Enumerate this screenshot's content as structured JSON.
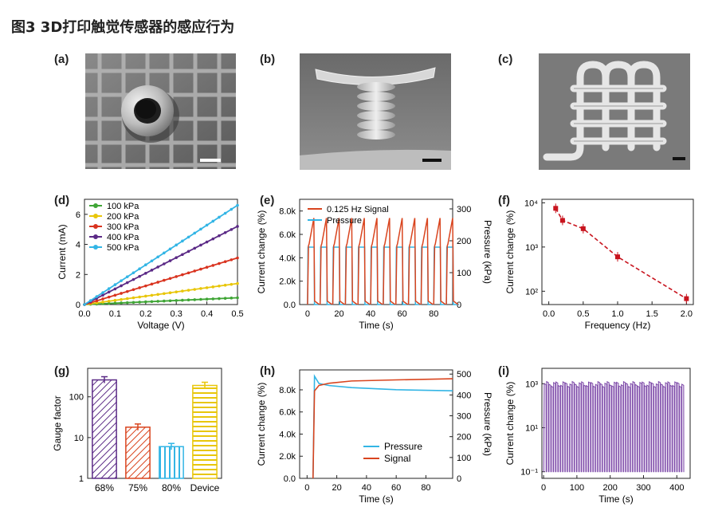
{
  "figure_title": "图3  3D打印触觉传感器的感应行为",
  "panel_labels": [
    "(a)",
    "(b)",
    "(c)",
    "(d)",
    "(e)",
    "(f)",
    "(g)",
    "(h)",
    "(i)"
  ],
  "images": {
    "a": "SEM micrograph of a printed hollow cylindrical tube on a lattice, viewed from above",
    "b": "SEM micrograph of a printed coil-spring pillar with a flat top plate",
    "c": "SEM micrograph of a printed woven lattice structure"
  },
  "chart_data": [
    {
      "id": "d",
      "type": "line",
      "xlabel": "Voltage (V)",
      "ylabel": "Current (mA)",
      "xlim": [
        0,
        0.5
      ],
      "ylim": [
        0,
        7
      ],
      "xticks": [
        "0.0",
        "0.1",
        "0.2",
        "0.3",
        "0.4",
        "0.5"
      ],
      "yticks": [
        "0",
        "2",
        "4",
        "6"
      ],
      "legend": "top-left",
      "x": [
        0,
        0.5
      ],
      "series": [
        {
          "name": "100 kPa",
          "color": "#3fa535",
          "values": [
            0,
            0.45
          ]
        },
        {
          "name": "200 kPa",
          "color": "#e8c60a",
          "values": [
            0,
            1.4
          ]
        },
        {
          "name": "300 kPa",
          "color": "#d9331f",
          "values": [
            0,
            3.1
          ]
        },
        {
          "name": "400 kPa",
          "color": "#5b2a86",
          "values": [
            0,
            5.2
          ]
        },
        {
          "name": "500 kPa",
          "color": "#33b5e5",
          "values": [
            0,
            6.6
          ]
        }
      ]
    },
    {
      "id": "e",
      "type": "line",
      "xlabel": "Time (s)",
      "ylabel": "Current change (%)",
      "y2label": "Pressure (kPa)",
      "xlim": [
        -5,
        92
      ],
      "ylim": [
        0,
        9000
      ],
      "y2lim": [
        0,
        330
      ],
      "xticks": [
        "0",
        "20",
        "40",
        "60",
        "80"
      ],
      "yticks": [
        "0.0",
        "2.0k",
        "4.0k",
        "6.0k",
        "8.0k"
      ],
      "y2ticks": [
        "0",
        "100",
        "200",
        "300"
      ],
      "legend": "top",
      "pulse_period_s": 8,
      "pulse_count": 12,
      "series": [
        {
          "name": "0.125 Hz Signal",
          "color": "#d9451f",
          "peak": 7400,
          "baseline": 0
        },
        {
          "name": "Pressure",
          "color": "#33b5e5",
          "peak": 180,
          "baseline": 0
        }
      ]
    },
    {
      "id": "f",
      "type": "scatter",
      "xlabel": "Frequency (Hz)",
      "ylabel": "Current change (%)",
      "xlim": [
        -0.1,
        2.1
      ],
      "yscale": "log",
      "ylim": [
        50,
        12000
      ],
      "xticks": [
        "0.0",
        "0.5",
        "1.0",
        "1.5",
        "2.0"
      ],
      "yticks": [
        "10²",
        "10³",
        "10⁴"
      ],
      "color": "#c8141e",
      "x": [
        0.1,
        0.2,
        0.5,
        1.0,
        2.0
      ],
      "y": [
        7500,
        4000,
        2600,
        600,
        68
      ]
    },
    {
      "id": "g",
      "type": "bar",
      "xlabel": "",
      "ylabel": "Gauge factor",
      "yscale": "log",
      "ylim": [
        1,
        500
      ],
      "yticks": [
        "1",
        "10",
        "100"
      ],
      "categories": [
        "68%",
        "75%",
        "80%",
        "Device"
      ],
      "values": [
        260,
        18,
        6,
        190
      ],
      "colors": [
        "#5b2a86",
        "#d9451f",
        "#33b5e5",
        "#e8c60a"
      ]
    },
    {
      "id": "h",
      "type": "line",
      "xlabel": "Time (s)",
      "ylabel": "Current change (%)",
      "y2label": "Pressure (kPa)",
      "xlim": [
        -5,
        98
      ],
      "ylim": [
        0,
        9800
      ],
      "y2lim": [
        0,
        520
      ],
      "xticks": [
        "0",
        "20",
        "40",
        "60",
        "80"
      ],
      "yticks": [
        "0.0",
        "2.0k",
        "4.0k",
        "6.0k",
        "8.0k"
      ],
      "y2ticks": [
        "0",
        "100",
        "200",
        "300",
        "400",
        "500"
      ],
      "legend": "bottom-right",
      "series": [
        {
          "name": "Pressure",
          "color": "#33b5e5",
          "x": [
            4,
            5,
            8,
            15,
            30,
            60,
            98
          ],
          "y2": [
            0,
            490,
            455,
            445,
            435,
            425,
            420
          ]
        },
        {
          "name": "Signal",
          "color": "#d9451f",
          "x": [
            4,
            5,
            8,
            15,
            30,
            60,
            98
          ],
          "y": [
            0,
            7900,
            8400,
            8600,
            8800,
            8900,
            9000
          ]
        }
      ]
    },
    {
      "id": "i",
      "type": "line",
      "xlabel": "Time (s)",
      "ylabel": "Current change (%)",
      "yscale": "log",
      "xlim": [
        -5,
        440
      ],
      "ylim": [
        0.05,
        5000
      ],
      "xticks": [
        "0",
        "100",
        "200",
        "300",
        "400"
      ],
      "yticks": [
        "10⁻¹",
        "10¹",
        "10³"
      ],
      "color": "#7d4aa8",
      "cycles": 60,
      "high": 1000,
      "low": 0.1
    }
  ]
}
